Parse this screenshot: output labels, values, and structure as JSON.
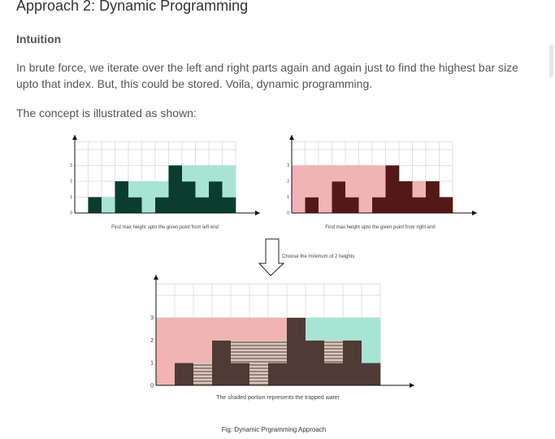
{
  "heading": "Approach 2: Dynamic Programming",
  "subheading": "Intuition",
  "paragraph": "In brute force, we iterate over the left and right parts again and again just to find the highest bar size upto that index. But, this could be stored. Voila, dynamic programming.",
  "intro": "The concept is illustrated as shown:",
  "figure": {
    "left_caption": "Find max height upto the given point from left end",
    "right_caption": "Find max height upto the given point from right end",
    "arrow_caption": "Choose the minimum of 2 heights",
    "bottom_caption": "The shaded portion represents the trapped water",
    "fig_caption": "Fig: Dynamic Prgramming Approach",
    "heights": [
      0,
      1,
      0,
      2,
      1,
      0,
      1,
      3,
      2,
      1,
      2,
      1
    ],
    "y_ticks": [
      "0",
      "1",
      "2",
      "3"
    ],
    "colors": {
      "dark_green": "#0b3d2e",
      "light_green": "#a8e4d4",
      "pink": "#f0b4b4",
      "dark_red": "#551818",
      "brown": "#4e3b35",
      "water_stripe": "#b39a90"
    }
  }
}
